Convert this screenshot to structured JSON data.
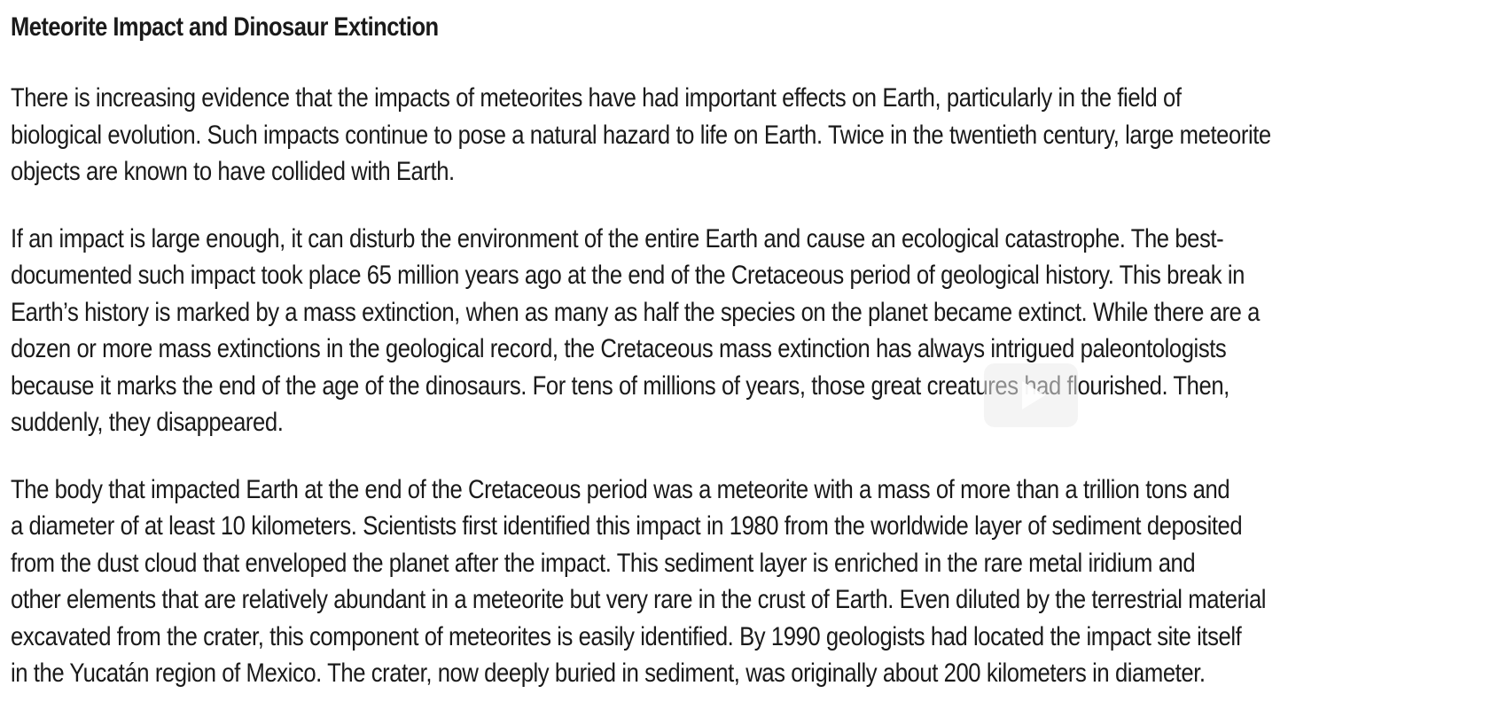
{
  "document": {
    "title": "Meteorite Impact and Dinosaur Extinction",
    "paragraphs": [
      {
        "lines": [
          "There is increasing evidence that the impacts of meteorites have had important effects on Earth, particularly in the field of",
          "biological evolution. Such impacts continue to pose a natural hazard to life on Earth. Twice in the twentieth century, large meteorite",
          "objects are known to have collided with Earth."
        ]
      },
      {
        "lines": [
          "If an impact is large enough, it can disturb the environment of the entire Earth and cause an ecological catastrophe. The best-",
          "documented such impact took place 65 million years ago at the end of the Cretaceous period of geological history. This break in",
          "Earth’s history is marked by a mass extinction, when as many as half the species on the planet became extinct. While there are a",
          "dozen or more mass extinctions in the geological record, the Cretaceous mass extinction has always intrigued paleontologists",
          "because it marks the end of the age of the dinosaurs. For tens of millions of years, those great creatures had flourished. Then,",
          "suddenly, they disappeared."
        ]
      },
      {
        "lines": [
          "The body that impacted Earth at the end of the Cretaceous period was a meteorite with a mass of more than a trillion tons and",
          "a diameter of at least 10 kilometers. Scientists first identified this impact in 1980 from the worldwide layer of sediment deposited",
          "from the dust cloud that enveloped the planet after the impact. This sediment layer is enriched in the rare metal iridium and",
          "other elements that are relatively abundant in a meteorite but very rare in the crust of Earth. Even diluted by the terrestrial material",
          "excavated from the crater, this component of meteorites is easily identified. By 1990 geologists had located the impact site itself",
          "in the Yucatán region of Mexico. The crater, now deeply buried in sediment, was originally about 200 kilometers in diameter."
        ]
      }
    ]
  },
  "overlay": {
    "icon": "play-icon"
  }
}
